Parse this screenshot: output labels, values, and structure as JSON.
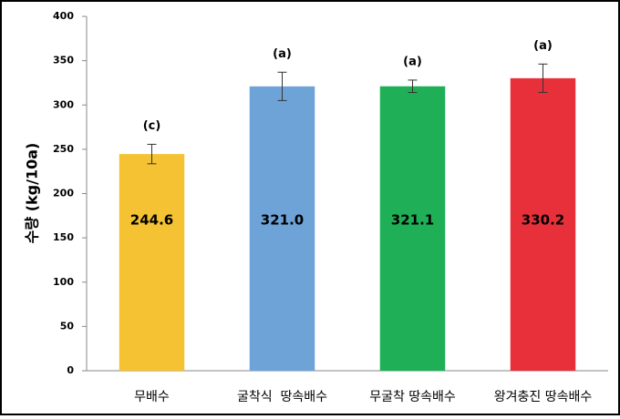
{
  "chart_data": {
    "type": "bar",
    "y_label": "수량 (kg/10a)",
    "categories": [
      "무배수",
      "굴착식  땅속배수",
      "무굴착 땅속배수",
      "왕겨충진 땅속배수"
    ],
    "values": [
      244.6,
      321.0,
      321.1,
      330.2
    ],
    "value_labels": [
      "244.6",
      "321.0",
      "321.1",
      "330.2"
    ],
    "errors": [
      11,
      16,
      7,
      16
    ],
    "annotations": [
      "(c)",
      "(a)",
      "(a)",
      "(a)"
    ],
    "colors": [
      "#f4c232",
      "#6ea3d8",
      "#1fb057",
      "#e8303a"
    ],
    "ylim": [
      0,
      400
    ],
    "yticks": [
      0,
      50,
      100,
      150,
      200,
      250,
      300,
      350,
      400
    ],
    "grid": false
  }
}
